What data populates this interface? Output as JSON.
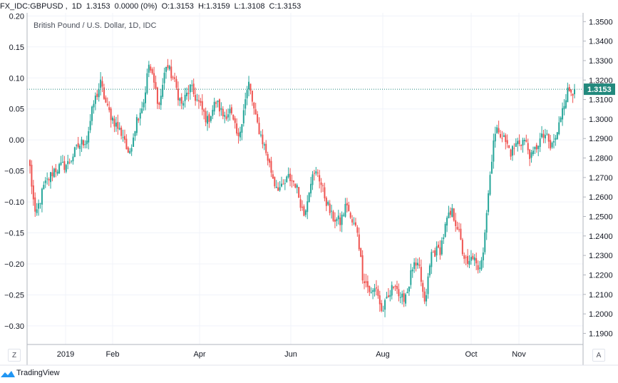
{
  "header": {
    "symbol": "FX_IDC:GBPUSD",
    "interval": "1D",
    "last": "1.3153",
    "change": "0.0000 (0%)",
    "open": "O:1.3153",
    "high": "H:1.3159",
    "low": "L:1.3108",
    "close": "C:1.3153"
  },
  "chart_title": "British Pound / U.S. Dollar, 1D, IDC",
  "price_tag": "1.3153",
  "zoom_button": "Z",
  "auto_button": "A",
  "brand": "TradingView",
  "colors": {
    "up": "#26a69a",
    "down": "#ef5350",
    "last_line": "#22897d",
    "grid": "#f0f3fa"
  },
  "icons": {
    "brand": "tradingview-logo-icon"
  },
  "chart_data": {
    "type": "candlestick",
    "left_axis": {
      "ylim": [
        -0.33,
        0.205
      ],
      "ticks": [
        "0.20",
        "0.15",
        "0.10",
        "0.05",
        "0.00",
        "−0.05",
        "−0.10",
        "−0.15",
        "−0.20",
        "−0.25",
        "−0.30"
      ]
    },
    "right_axis": {
      "ylim": [
        1.1843,
        1.3545
      ],
      "ticks": [
        "1.3500",
        "1.3400",
        "1.3300",
        "1.3200",
        "1.3100",
        "1.3000",
        "1.2900",
        "1.2800",
        "1.2700",
        "1.2600",
        "1.2500",
        "1.2400",
        "1.2300",
        "1.2200",
        "1.2100",
        "1.2000",
        "1.1900"
      ]
    },
    "x_labels": [
      "2019",
      "Feb",
      "Apr",
      "Jun",
      "Aug",
      "Oct",
      "Nov"
    ],
    "last_price": 1.3153,
    "keypoints": [
      [
        0,
        1.275
      ],
      [
        3,
        1.2495
      ],
      [
        8,
        1.265
      ],
      [
        14,
        1.274
      ],
      [
        22,
        1.277
      ],
      [
        28,
        1.286
      ],
      [
        33,
        1.29
      ],
      [
        37,
        1.308
      ],
      [
        41,
        1.318
      ],
      [
        45,
        1.305
      ],
      [
        50,
        1.297
      ],
      [
        55,
        1.29
      ],
      [
        57,
        1.28
      ],
      [
        62,
        1.3
      ],
      [
        66,
        1.309
      ],
      [
        69,
        1.328
      ],
      [
        72,
        1.318
      ],
      [
        75,
        1.307
      ],
      [
        79,
        1.328
      ],
      [
        83,
        1.321
      ],
      [
        88,
        1.307
      ],
      [
        93,
        1.316
      ],
      [
        98,
        1.308
      ],
      [
        103,
        1.299
      ],
      [
        108,
        1.309
      ],
      [
        112,
        1.302
      ],
      [
        116,
        1.304
      ],
      [
        121,
        1.289
      ],
      [
        124,
        1.306
      ],
      [
        127,
        1.318
      ],
      [
        131,
        1.3
      ],
      [
        136,
        1.286
      ],
      [
        142,
        1.267
      ],
      [
        146,
        1.264
      ],
      [
        150,
        1.27
      ],
      [
        154,
        1.267
      ],
      [
        159,
        1.251
      ],
      [
        163,
        1.269
      ],
      [
        167,
        1.273
      ],
      [
        170,
        1.263
      ],
      [
        175,
        1.25
      ],
      [
        180,
        1.247
      ],
      [
        184,
        1.257
      ],
      [
        186,
        1.248
      ],
      [
        190,
        1.243
      ],
      [
        193,
        1.22
      ],
      [
        198,
        1.21
      ],
      [
        201,
        1.214
      ],
      [
        204,
        1.201
      ],
      [
        208,
        1.208
      ],
      [
        212,
        1.217
      ],
      [
        215,
        1.206
      ],
      [
        219,
        1.212
      ],
      [
        222,
        1.224
      ],
      [
        226,
        1.223
      ],
      [
        229,
        1.204
      ],
      [
        233,
        1.231
      ],
      [
        238,
        1.233
      ],
      [
        242,
        1.248
      ],
      [
        245,
        1.252
      ],
      [
        248,
        1.245
      ],
      [
        251,
        1.232
      ],
      [
        254,
        1.224
      ],
      [
        257,
        1.23
      ],
      [
        260,
        1.221
      ],
      [
        263,
        1.234
      ],
      [
        266,
        1.262
      ],
      [
        269,
        1.29
      ],
      [
        272,
        1.295
      ],
      [
        275,
        1.29
      ],
      [
        279,
        1.283
      ],
      [
        283,
        1.288
      ],
      [
        287,
        1.289
      ],
      [
        291,
        1.28
      ],
      [
        295,
        1.288
      ],
      [
        299,
        1.292
      ],
      [
        302,
        1.285
      ],
      [
        306,
        1.292
      ],
      [
        309,
        1.307
      ],
      [
        312,
        1.314
      ],
      [
        316,
        1.3153
      ]
    ]
  }
}
